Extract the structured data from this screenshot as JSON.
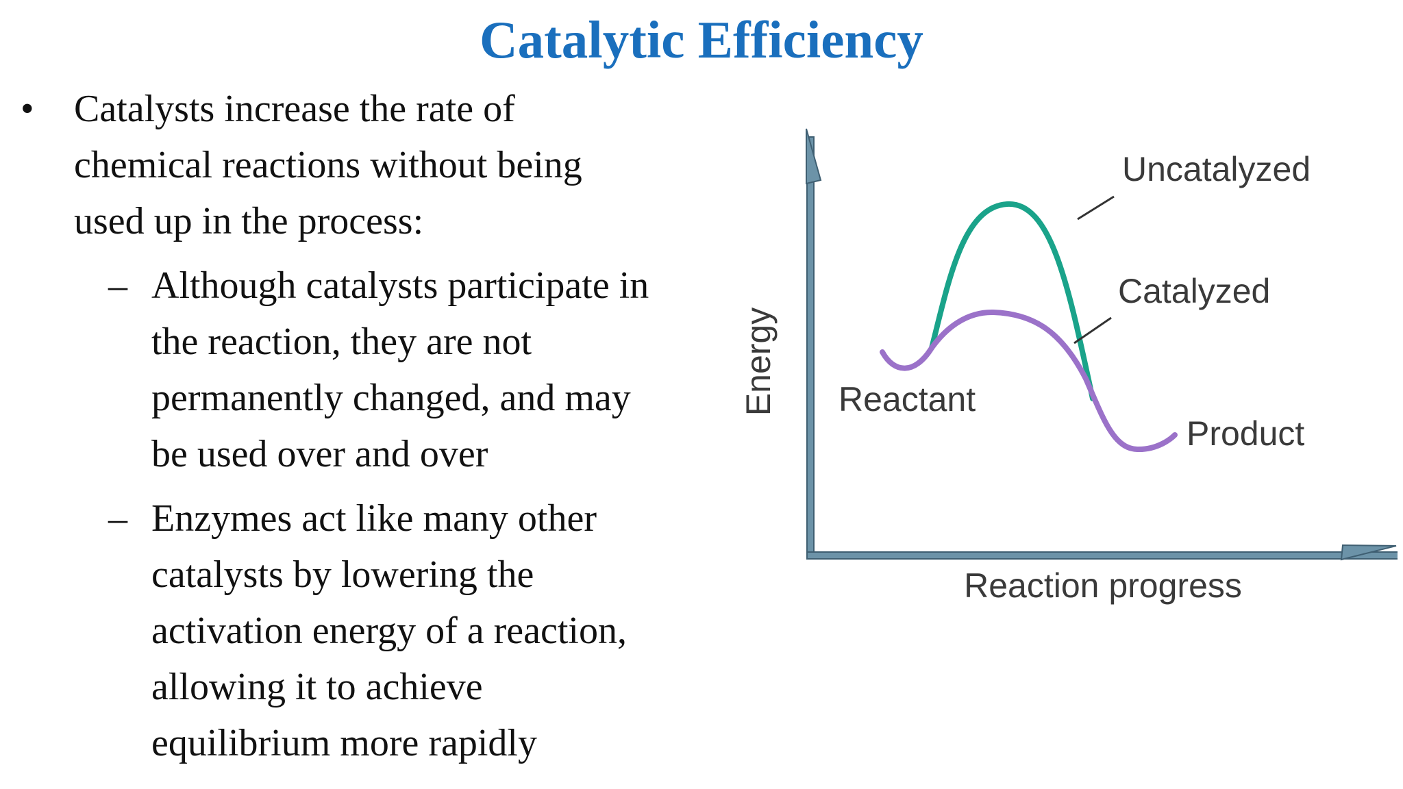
{
  "slide": {
    "title": "Catalytic Efficiency",
    "bullet_marker": "•",
    "sub_marker": "–",
    "bullet": {
      "lines": [
        "Catalysts increase the rate of",
        "chemical reactions without being",
        "used up in the process:"
      ],
      "subpoints": [
        {
          "lines": [
            "Although catalysts participate in",
            "the reaction, they are not",
            "permanently changed, and may",
            "be used over and over"
          ]
        },
        {
          "lines": [
            "Enzymes act like many other",
            "catalysts by lowering the",
            "activation energy of a reaction,",
            "allowing it to achieve",
            "equilibrium more rapidly"
          ]
        }
      ]
    }
  },
  "diagram": {
    "y_axis_label": "Energy",
    "x_axis_label": "Reaction progress",
    "labels": {
      "uncatalyzed": "Uncatalyzed",
      "catalyzed": "Catalyzed",
      "reactant": "Reactant",
      "product": "Product"
    },
    "colors": {
      "uncatalyzed_curve": "#1aa38a",
      "catalyzed_curve": "#9b72c9",
      "axis": "#6c93a8",
      "axis_outline": "#3f5f72",
      "leader_line": "#333333",
      "title": "#1a6fbd"
    }
  }
}
